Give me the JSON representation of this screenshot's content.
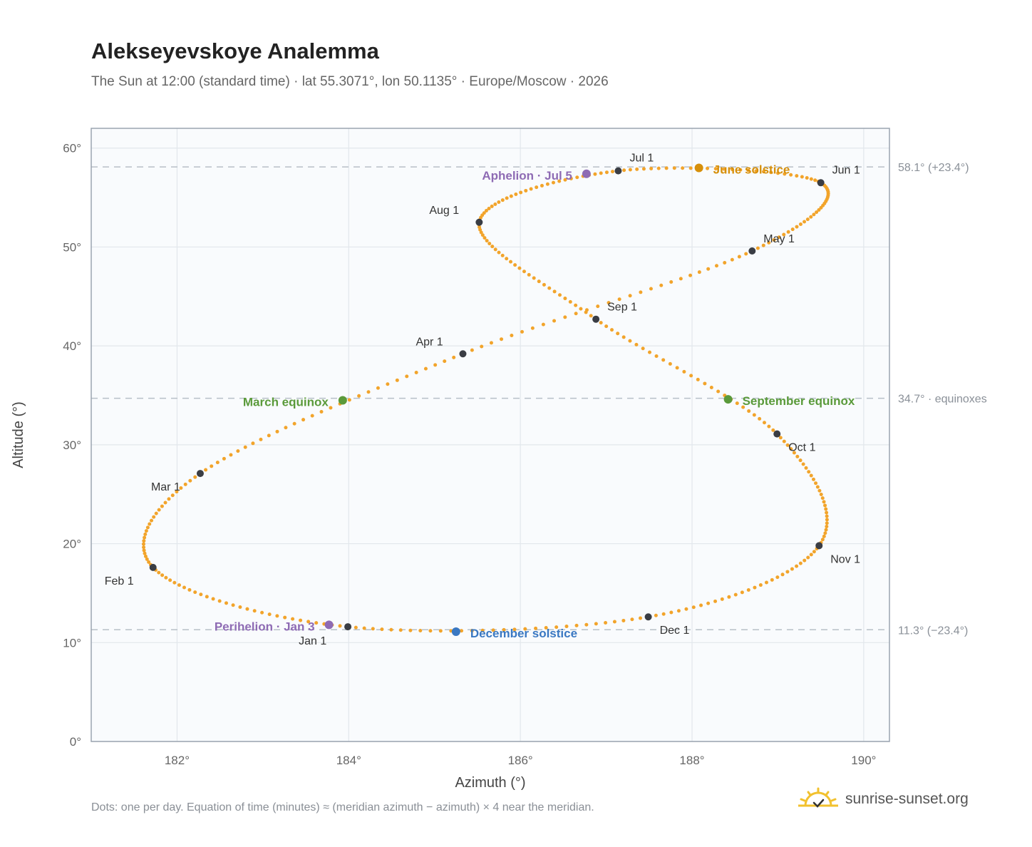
{
  "header": {
    "title": "Alekseyevskoye Analemma",
    "subtitle": "The Sun at 12:00 (standard time) · lat 55.3071°, lon 50.1135° · Europe/Moscow · 2026"
  },
  "footer": {
    "note": "Dots: one per day. Equation of time (minutes) ≈ (meridian azimuth − azimuth) × 4 near the meridian.",
    "brand": "sunrise-sunset.org"
  },
  "colors": {
    "curve": "#f2a42b",
    "month_marker": "#3a3d44",
    "june_solstice": "#d68f0a",
    "december_solstice": "#3a78c2",
    "equinox": "#5a9a3a",
    "apsis": "#8e6bb4",
    "reference_line": "#b8c0c8"
  },
  "chart_data": {
    "type": "scatter",
    "xlabel": "Azimuth (°)",
    "ylabel": "Altitude (°)",
    "xlim": [
      181.0,
      190.3
    ],
    "ylim": [
      0,
      62
    ],
    "xticks": [
      182,
      184,
      186,
      188,
      190
    ],
    "yticks": [
      0,
      10,
      20,
      30,
      40,
      50,
      60
    ],
    "xtick_labels": [
      "182°",
      "184°",
      "186°",
      "188°",
      "190°"
    ],
    "ytick_labels": [
      "0°",
      "10°",
      "20°",
      "30°",
      "40°",
      "50°",
      "60°"
    ],
    "grid": true,
    "path_anchors": [
      {
        "doy": 1,
        "az": 183.99,
        "alt": 11.6
      },
      {
        "doy": 32,
        "az": 181.72,
        "alt": 17.6
      },
      {
        "doy": 60,
        "az": 182.27,
        "alt": 27.1
      },
      {
        "doy": 91,
        "az": 185.33,
        "alt": 39.2
      },
      {
        "doy": 121,
        "az": 188.7,
        "alt": 49.6
      },
      {
        "doy": 152,
        "az": 189.5,
        "alt": 56.5
      },
      {
        "doy": 182,
        "az": 187.14,
        "alt": 57.7
      },
      {
        "doy": 213,
        "az": 185.52,
        "alt": 52.5
      },
      {
        "doy": 244,
        "az": 186.88,
        "alt": 42.7
      },
      {
        "doy": 274,
        "az": 188.99,
        "alt": 31.1
      },
      {
        "doy": 305,
        "az": 189.48,
        "alt": 19.8
      },
      {
        "doy": 335,
        "az": 187.49,
        "alt": 12.6
      },
      {
        "doy": 366,
        "az": 183.99,
        "alt": 11.6
      }
    ],
    "month_markers": [
      {
        "label": "Jan 1",
        "az": 183.99,
        "alt": 11.6,
        "anchor": "start",
        "dx": -69,
        "dy": 25
      },
      {
        "label": "Feb 1",
        "az": 181.72,
        "alt": 17.6,
        "anchor": "start",
        "dx": -68,
        "dy": 24
      },
      {
        "label": "Mar 1",
        "az": 182.27,
        "alt": 27.1,
        "anchor": "start",
        "dx": -69,
        "dy": 24
      },
      {
        "label": "Apr 1",
        "az": 185.33,
        "alt": 39.2,
        "anchor": "start",
        "dx": -66,
        "dy": -12
      },
      {
        "label": "May 1",
        "az": 188.7,
        "alt": 49.6,
        "anchor": "start",
        "dx": 16,
        "dy": -12
      },
      {
        "label": "Jun 1",
        "az": 189.5,
        "alt": 56.5,
        "anchor": "start",
        "dx": 16,
        "dy": -13
      },
      {
        "label": "Jul 1",
        "az": 187.14,
        "alt": 57.7,
        "anchor": "start",
        "dx": 16,
        "dy": -13
      },
      {
        "label": "Aug 1",
        "az": 185.52,
        "alt": 52.5,
        "anchor": "start",
        "dx": -70,
        "dy": -12
      },
      {
        "label": "Sep 1",
        "az": 186.88,
        "alt": 42.7,
        "anchor": "start",
        "dx": 16,
        "dy": -12
      },
      {
        "label": "Oct 1",
        "az": 188.99,
        "alt": 31.1,
        "anchor": "start",
        "dx": 16,
        "dy": 24
      },
      {
        "label": "Nov 1",
        "az": 189.48,
        "alt": 19.8,
        "anchor": "start",
        "dx": 16,
        "dy": 24
      },
      {
        "label": "Dec 1",
        "az": 187.49,
        "alt": 12.6,
        "anchor": "start",
        "dx": 16,
        "dy": 24
      }
    ],
    "events": [
      {
        "label": "June solstice",
        "az": 188.08,
        "alt": 58.0,
        "color_key": "june_solstice",
        "anchor": "start",
        "dx": 20,
        "dy": 8
      },
      {
        "label": "December solstice",
        "az": 185.25,
        "alt": 11.1,
        "color_key": "december_solstice",
        "anchor": "start",
        "dx": 20,
        "dy": 8
      },
      {
        "label": "March equinox",
        "az": 183.93,
        "alt": 34.5,
        "color_key": "equinox",
        "anchor": "end",
        "dx": -20,
        "dy": 8
      },
      {
        "label": "September equinox",
        "az": 188.42,
        "alt": 34.6,
        "color_key": "equinox",
        "anchor": "start",
        "dx": 20,
        "dy": 8
      },
      {
        "label": "Aphelion · Jul 5",
        "az": 186.77,
        "alt": 57.4,
        "color_key": "apsis",
        "anchor": "end",
        "dx": -20,
        "dy": 8
      },
      {
        "label": "Perihelion · Jan 3",
        "az": 183.77,
        "alt": 11.8,
        "color_key": "apsis",
        "anchor": "end",
        "dx": -20,
        "dy": 8
      }
    ],
    "reference_lines": [
      {
        "alt": 58.1,
        "label": "58.1° (+23.4°)"
      },
      {
        "alt": 34.7,
        "label": "34.7° · equinoxes"
      },
      {
        "alt": 11.3,
        "label": "11.3° (−23.4°)"
      }
    ]
  }
}
